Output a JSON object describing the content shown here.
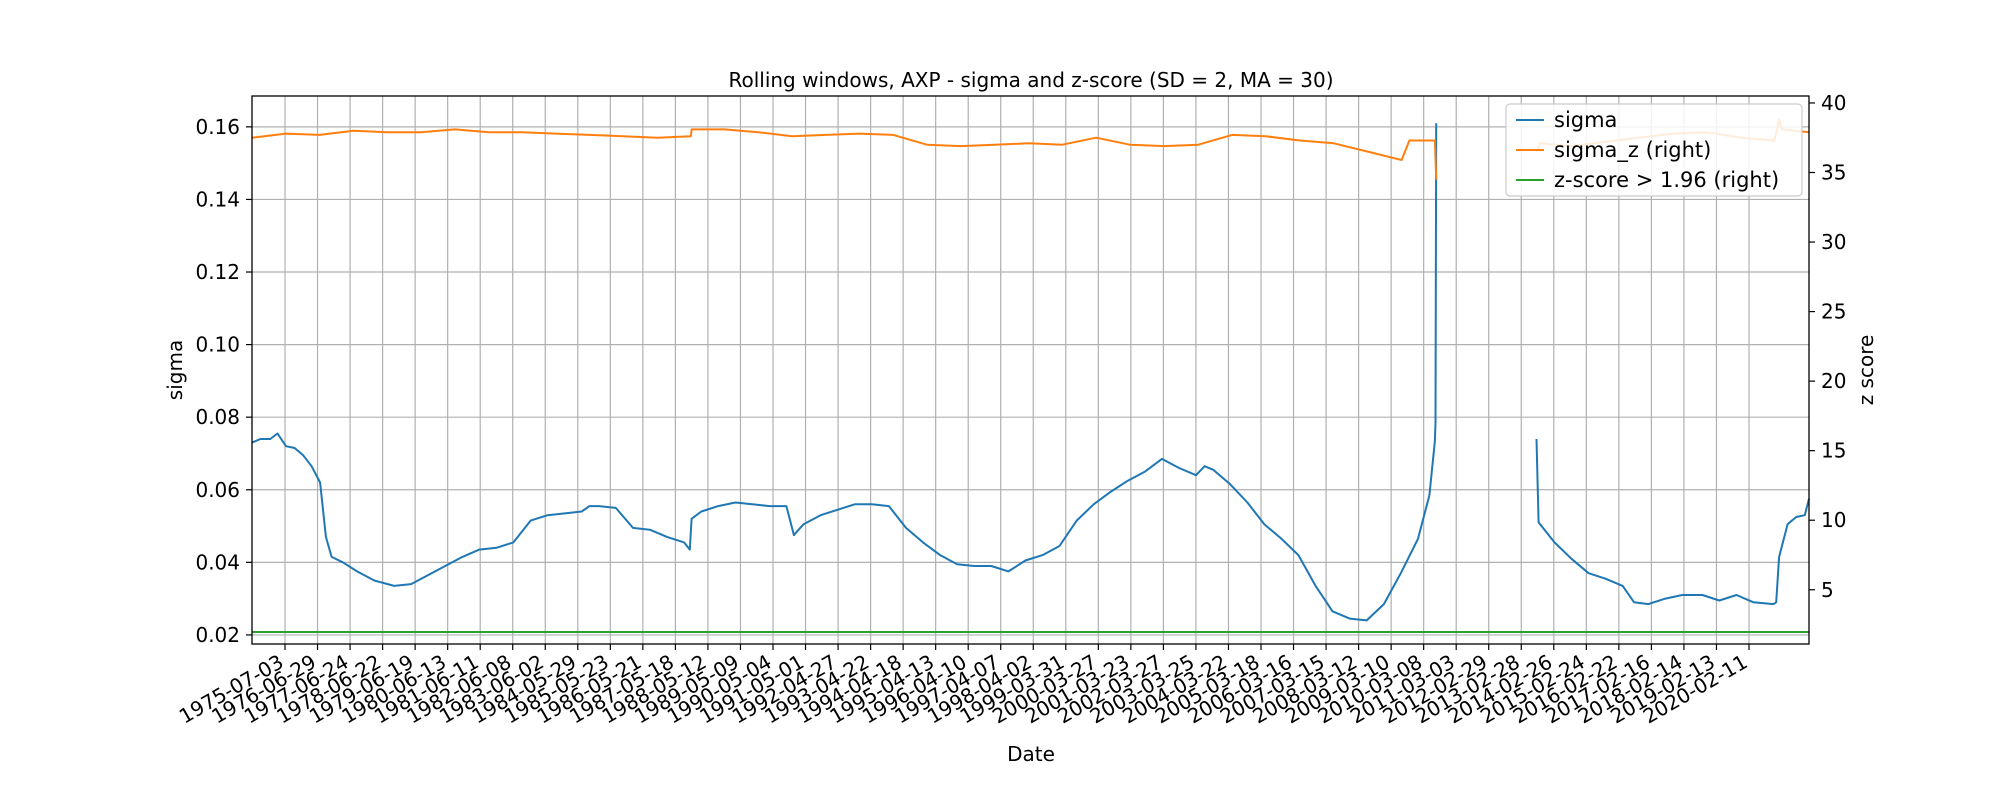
{
  "chart_data": {
    "type": "line",
    "title": "Rolling windows, AXP - sigma and z-score (SD = 2, MA = 30)",
    "xlabel": "Date",
    "ylabel": "sigma",
    "y2label": "z score",
    "grid": true,
    "legend_position": "top-right",
    "x_tick_labels": [
      "1975-07-03",
      "1976-06-29",
      "1977-06-24",
      "1978-06-22",
      "1979-06-19",
      "1980-06-13",
      "1981-06-11",
      "1982-06-08",
      "1983-06-02",
      "1984-05-29",
      "1985-05-23",
      "1986-05-21",
      "1987-05-18",
      "1988-05-12",
      "1989-05-09",
      "1990-05-04",
      "1991-05-01",
      "1992-04-27",
      "1993-04-22",
      "1994-04-18",
      "1995-04-13",
      "1996-04-10",
      "1997-04-07",
      "1998-04-02",
      "1999-03-31",
      "2000-03-27",
      "2001-03-23",
      "2002-03-27",
      "2003-03-25",
      "2004-03-22",
      "2005-03-18",
      "2006-03-16",
      "2007-03-15",
      "2008-03-12",
      "2009-03-10",
      "2010-03-08",
      "2011-03-03",
      "2012-02-29",
      "2013-02-28",
      "2014-02-26",
      "2015-02-24",
      "2016-02-22",
      "2017-02-16",
      "2018-02-14",
      "2019-02-13",
      "2020-02-11"
    ],
    "y_left": {
      "ticks": [
        0.02,
        0.04,
        0.06,
        0.08,
        0.1,
        0.12,
        0.14,
        0.16
      ],
      "tick_labels": [
        "0.02",
        "0.04",
        "0.06",
        "0.08",
        "0.10",
        "0.12",
        "0.14",
        "0.16"
      ],
      "range": [
        0.0175,
        0.1685
      ]
    },
    "y_right": {
      "ticks": [
        5,
        10,
        15,
        20,
        25,
        30,
        35,
        40
      ],
      "tick_labels": [
        "5",
        "10",
        "15",
        "20",
        "25",
        "30",
        "35",
        "40"
      ],
      "range": [
        1.1,
        40.5
      ]
    },
    "x_range": [
      "1975-07-03",
      "2021-02-15"
    ],
    "series": [
      {
        "name": "sigma",
        "axis": "left",
        "color": "#1f77b4",
        "segments": [
          [
            [
              "1975-07-03",
              0.073
            ],
            [
              "1975-10-01",
              0.074
            ],
            [
              "1976-01-15",
              0.074
            ],
            [
              "1976-04-01",
              0.0755
            ],
            [
              "1976-07-01",
              0.072
            ],
            [
              "1976-10-01",
              0.0715
            ],
            [
              "1977-01-01",
              0.0695
            ],
            [
              "1977-04-01",
              0.0665
            ],
            [
              "1977-07-01",
              0.062
            ],
            [
              "1977-09-01",
              0.047
            ],
            [
              "1977-11-01",
              0.0415
            ],
            [
              "1978-03-01",
              0.04
            ],
            [
              "1978-08-01",
              0.0375
            ],
            [
              "1979-02-01",
              0.035
            ],
            [
              "1979-09-01",
              0.0335
            ],
            [
              "1980-03-01",
              0.034
            ],
            [
              "1980-09-01",
              0.0365
            ],
            [
              "1981-03-01",
              0.039
            ],
            [
              "1981-09-01",
              0.0415
            ],
            [
              "1982-03-01",
              0.0435
            ],
            [
              "1982-09-01",
              0.044
            ],
            [
              "1983-03-01",
              0.0455
            ],
            [
              "1983-09-01",
              0.0515
            ],
            [
              "1984-03-01",
              0.053
            ],
            [
              "1984-09-01",
              0.0535
            ],
            [
              "1985-03-01",
              0.054
            ],
            [
              "1985-05-23",
              0.0555
            ],
            [
              "1985-09-01",
              0.0555
            ],
            [
              "1986-03-01",
              0.055
            ],
            [
              "1986-09-01",
              0.0495
            ],
            [
              "1987-03-01",
              0.049
            ],
            [
              "1987-09-01",
              0.047
            ],
            [
              "1988-03-01",
              0.0455
            ],
            [
              "1988-05-01",
              0.0435
            ],
            [
              "1988-05-20",
              0.052
            ],
            [
              "1988-09-01",
              0.054
            ],
            [
              "1989-03-01",
              0.0555
            ],
            [
              "1989-09-01",
              0.0565
            ],
            [
              "1990-03-01",
              0.056
            ],
            [
              "1990-09-01",
              0.0555
            ],
            [
              "1991-03-01",
              0.0555
            ],
            [
              "1991-05-20",
              0.0475
            ],
            [
              "1991-09-01",
              0.0505
            ],
            [
              "1992-03-01",
              0.053
            ],
            [
              "1992-09-01",
              0.0545
            ],
            [
              "1993-03-01",
              0.056
            ],
            [
              "1993-09-01",
              0.056
            ],
            [
              "1994-03-01",
              0.0555
            ],
            [
              "1994-09-01",
              0.0495
            ],
            [
              "1995-03-01",
              0.0455
            ],
            [
              "1995-09-01",
              0.042
            ],
            [
              "1996-03-01",
              0.0395
            ],
            [
              "1996-09-01",
              0.039
            ],
            [
              "1997-03-01",
              0.039
            ],
            [
              "1997-09-01",
              0.0375
            ],
            [
              "1998-03-01",
              0.0405
            ],
            [
              "1998-09-01",
              0.042
            ],
            [
              "1999-03-01",
              0.0445
            ],
            [
              "1999-09-01",
              0.0515
            ],
            [
              "2000-03-01",
              0.056
            ],
            [
              "2000-09-01",
              0.0595
            ],
            [
              "2001-03-01",
              0.0625
            ],
            [
              "2001-09-01",
              0.065
            ],
            [
              "2002-03-01",
              0.0685
            ],
            [
              "2002-09-01",
              0.066
            ],
            [
              "2003-03-01",
              0.064
            ],
            [
              "2003-06-01",
              0.0665
            ],
            [
              "2003-09-01",
              0.0655
            ],
            [
              "2004-03-01",
              0.0615
            ],
            [
              "2004-09-01",
              0.0565
            ],
            [
              "2005-03-01",
              0.0505
            ],
            [
              "2005-09-01",
              0.0465
            ],
            [
              "2006-03-01",
              0.042
            ],
            [
              "2006-09-01",
              0.0335
            ],
            [
              "2007-03-01",
              0.0265
            ],
            [
              "2007-09-01",
              0.0245
            ],
            [
              "2008-03-01",
              0.024
            ],
            [
              "2008-09-01",
              0.0285
            ],
            [
              "2009-03-01",
              0.037
            ],
            [
              "2009-09-01",
              0.0465
            ],
            [
              "2010-01-01",
              0.0585
            ],
            [
              "2010-03-01",
              0.0735
            ],
            [
              "2010-03-08",
              0.0785
            ],
            [
              "2010-03-15",
              0.161
            ]
          ],
          [
            [
              "2013-02-20",
              0.074
            ],
            [
              "2013-03-15",
              0.051
            ],
            [
              "2013-09-01",
              0.0455
            ],
            [
              "2014-03-01",
              0.041
            ],
            [
              "2014-09-01",
              0.037
            ],
            [
              "2015-03-01",
              0.0355
            ],
            [
              "2015-09-01",
              0.0335
            ],
            [
              "2016-01-01",
              0.029
            ],
            [
              "2016-06-01",
              0.0285
            ],
            [
              "2016-12-01",
              0.03
            ],
            [
              "2017-06-01",
              0.031
            ],
            [
              "2018-01-01",
              0.031
            ],
            [
              "2018-07-01",
              0.0295
            ],
            [
              "2019-01-01",
              0.031
            ],
            [
              "2019-07-01",
              0.029
            ],
            [
              "2020-02-01",
              0.0285
            ],
            [
              "2020-03-01",
              0.029
            ],
            [
              "2020-04-01",
              0.0415
            ],
            [
              "2020-07-01",
              0.0505
            ],
            [
              "2020-10-01",
              0.0525
            ],
            [
              "2021-01-01",
              0.053
            ],
            [
              "2021-02-15",
              0.0575
            ]
          ]
        ]
      },
      {
        "name": "sigma_z (right)",
        "axis": "right",
        "color": "#ff7f0e",
        "segments": [
          [
            [
              "1975-07-03",
              37.5
            ],
            [
              "1976-06-29",
              37.8
            ],
            [
              "1977-06-24",
              37.7
            ],
            [
              "1978-06-22",
              38.0
            ],
            [
              "1979-06-19",
              37.9
            ],
            [
              "1980-06-13",
              37.9
            ],
            [
              "1981-06-11",
              38.1
            ],
            [
              "1982-06-08",
              37.9
            ],
            [
              "1983-06-02",
              37.9
            ],
            [
              "1984-05-29",
              37.8
            ],
            [
              "1985-05-23",
              37.7
            ],
            [
              "1986-05-21",
              37.6
            ],
            [
              "1987-05-18",
              37.5
            ],
            [
              "1988-05-12",
              37.6
            ],
            [
              "1988-05-20",
              38.1
            ],
            [
              "1989-05-09",
              38.1
            ],
            [
              "1990-05-04",
              37.9
            ],
            [
              "1991-05-01",
              37.6
            ],
            [
              "1992-04-27",
              37.7
            ],
            [
              "1993-04-22",
              37.8
            ],
            [
              "1994-04-18",
              37.7
            ],
            [
              "1995-04-13",
              37.0
            ],
            [
              "1996-04-10",
              36.9
            ],
            [
              "1997-04-07",
              37.0
            ],
            [
              "1998-04-02",
              37.1
            ],
            [
              "1999-03-31",
              37.0
            ],
            [
              "2000-03-27",
              37.5
            ],
            [
              "2001-03-23",
              37.0
            ],
            [
              "2002-03-27",
              36.9
            ],
            [
              "2003-03-25",
              37.0
            ],
            [
              "2004-03-22",
              37.7
            ],
            [
              "2005-03-18",
              37.6
            ],
            [
              "2006-03-16",
              37.3
            ],
            [
              "2007-03-15",
              37.1
            ],
            [
              "2008-03-12",
              36.5
            ],
            [
              "2009-03-10",
              35.9
            ],
            [
              "2009-06-01",
              37.3
            ],
            [
              "2010-03-01",
              37.3
            ],
            [
              "2010-03-15",
              34.5
            ]
          ],
          [
            [
              "2013-02-20",
              36.5
            ],
            [
              "2013-04-01",
              37.1
            ],
            [
              "2014-02-26",
              36.9
            ],
            [
              "2015-02-24",
              37.2
            ],
            [
              "2016-02-22",
              37.5
            ],
            [
              "2017-02-16",
              37.8
            ],
            [
              "2018-02-14",
              37.9
            ],
            [
              "2019-02-13",
              37.5
            ],
            [
              "2020-02-11",
              37.3
            ],
            [
              "2020-04-01",
              38.8
            ],
            [
              "2020-05-01",
              38.1
            ],
            [
              "2021-02-15",
              37.9
            ]
          ]
        ]
      },
      {
        "name": "z-score > 1.96 (right)",
        "axis": "right",
        "color": "#2ca02c",
        "segments": [
          [
            [
              "1975-07-03",
              1.96
            ],
            [
              "2021-02-15",
              1.96
            ]
          ]
        ]
      }
    ]
  }
}
